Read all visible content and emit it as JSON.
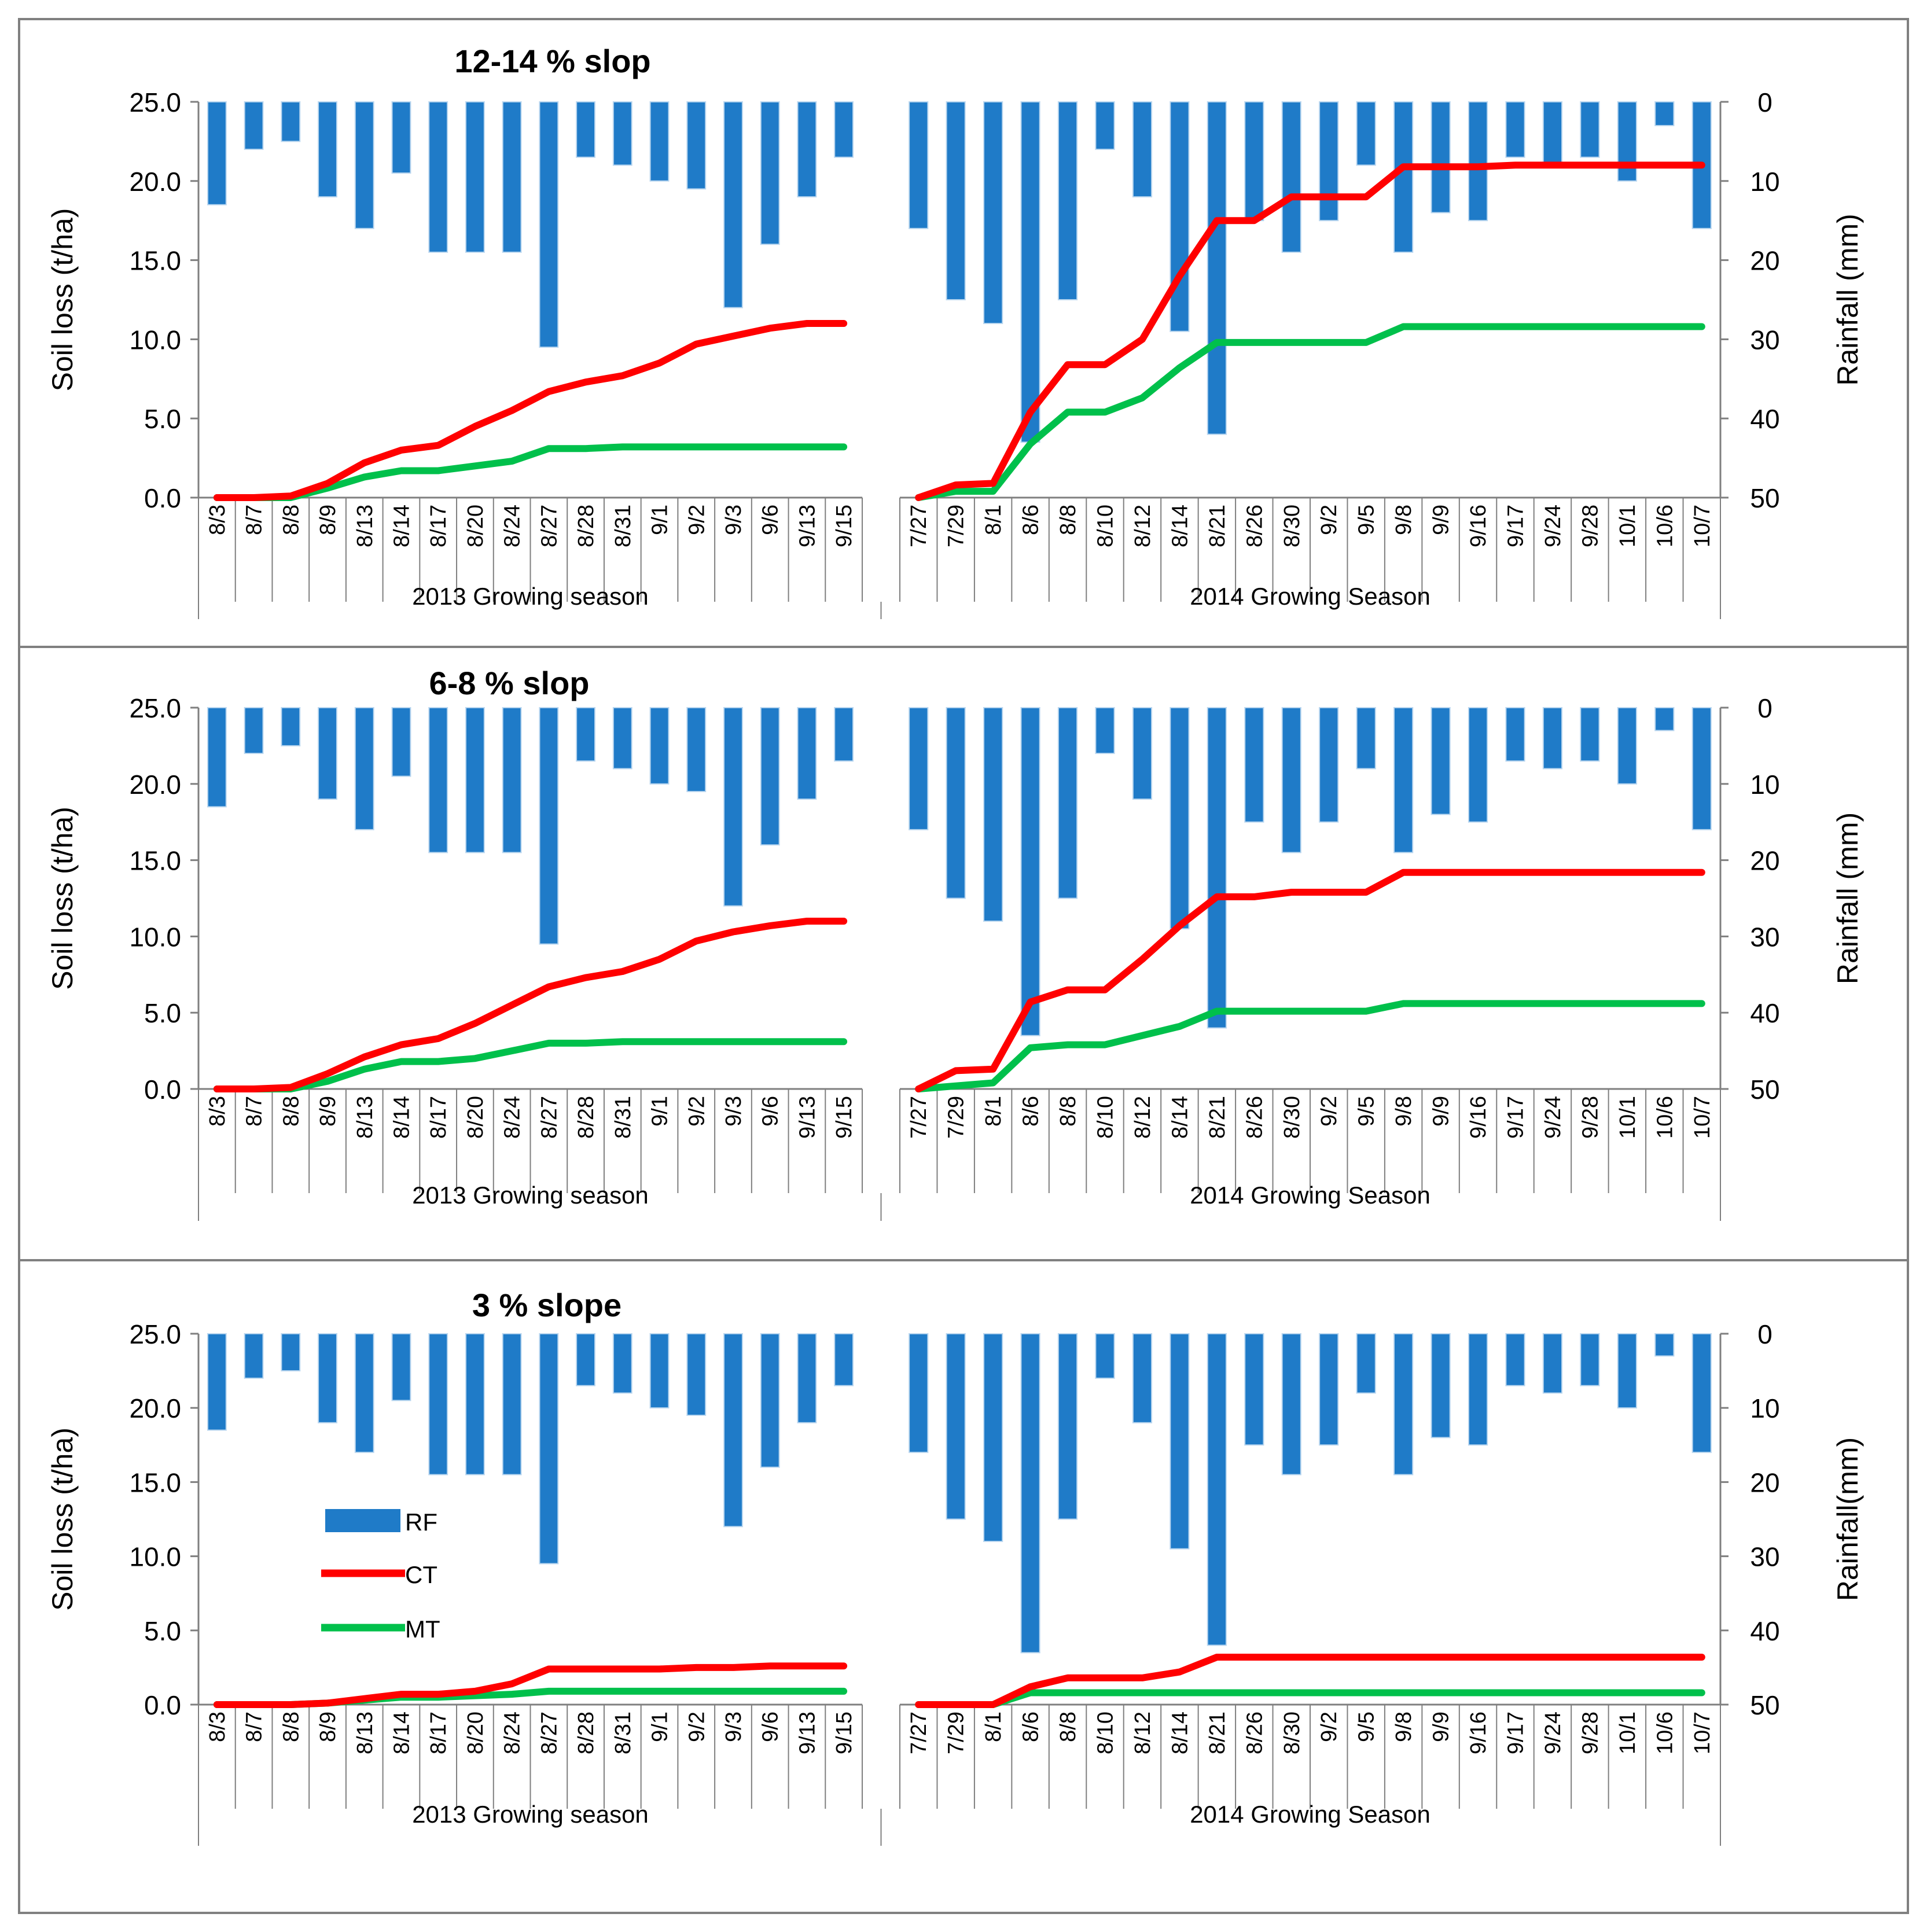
{
  "colors": {
    "rf": "#1f7bc8",
    "ct": "#ff0000",
    "mt": "#00c04b",
    "axis": "#7f7f7f",
    "text": "#000000",
    "frame": "#808080"
  },
  "legend": {
    "rf": "RF",
    "ct": "CT",
    "mt": "MT"
  },
  "chart_data": [
    {
      "type": "bar+line",
      "title": "12-14 % slop",
      "ylabel": "Soil loss (t/ha)",
      "y2label": "Rainfall (mm)",
      "ylim": [
        0,
        25
      ],
      "y2lim": [
        50,
        0
      ],
      "y_ticks": [
        "0.0",
        "5.0",
        "10.0",
        "15.0",
        "20.0",
        "25.0"
      ],
      "y2_ticks": [
        "50",
        "40",
        "30",
        "20",
        "10",
        "0"
      ],
      "season_2013_label": "2013 Growing season",
      "season_2014_label": "2014 Growing Season",
      "categories_2013": [
        "8/3",
        "8/7",
        "8/8",
        "8/9",
        "8/13",
        "8/14",
        "8/17",
        "8/20",
        "8/24",
        "8/27",
        "8/28",
        "8/31",
        "9/1",
        "9/2",
        "9/3",
        "9/6",
        "9/13",
        "9/15"
      ],
      "categories_2014": [
        "7/27",
        "7/29",
        "8/1",
        "8/6",
        "8/8",
        "8/10",
        "8/12",
        "8/14",
        "8/21",
        "8/26",
        "8/30",
        "9/2",
        "9/5",
        "9/8",
        "9/9",
        "9/16",
        "9/17",
        "9/24",
        "9/28",
        "10/1",
        "10/6",
        "10/7"
      ],
      "rainfall_2013": [
        13,
        6,
        5,
        12,
        16,
        9,
        19,
        19,
        19,
        31,
        7,
        8,
        10,
        11,
        26,
        18,
        12,
        7
      ],
      "rainfall_2014": [
        16,
        25,
        28,
        43,
        25,
        6,
        12,
        29,
        42,
        15,
        19,
        15,
        8,
        19,
        14,
        15,
        7,
        8,
        7,
        10,
        3,
        16
      ],
      "ct_2013": [
        0,
        0,
        0.1,
        0.9,
        2.2,
        3.0,
        3.3,
        4.5,
        5.5,
        6.7,
        7.3,
        7.7,
        8.5,
        9.7,
        10.2,
        10.7,
        11.0,
        11.0
      ],
      "mt_2013": [
        0,
        0,
        0,
        0.6,
        1.3,
        1.7,
        1.7,
        2.0,
        2.3,
        3.1,
        3.1,
        3.2,
        3.2,
        3.2,
        3.2,
        3.2,
        3.2,
        3.2
      ],
      "ct_2014": [
        0,
        0.8,
        0.9,
        5.4,
        8.4,
        8.4,
        10.0,
        14.0,
        17.5,
        17.5,
        19.0,
        19.0,
        19.0,
        20.9,
        20.9,
        20.9,
        21.0,
        21.0,
        21.0,
        21.0,
        21.0,
        21.0
      ],
      "mt_2014": [
        0,
        0.4,
        0.4,
        3.4,
        5.4,
        5.4,
        6.3,
        8.2,
        9.8,
        9.8,
        9.8,
        9.8,
        9.8,
        10.8,
        10.8,
        10.8,
        10.8,
        10.8,
        10.8,
        10.8,
        10.8,
        10.8
      ]
    },
    {
      "type": "bar+line",
      "title": "6-8 % slop",
      "ylabel": "Soil loss (t/ha)",
      "y2label": "Rainfall (mm)",
      "ylim": [
        0,
        25
      ],
      "y2lim": [
        50,
        0
      ],
      "y_ticks": [
        "0.0",
        "5.0",
        "10.0",
        "15.0",
        "20.0",
        "25.0"
      ],
      "y2_ticks": [
        "50",
        "40",
        "30",
        "20",
        "10",
        "0"
      ],
      "season_2013_label": "2013 Growing season",
      "season_2014_label": "2014 Growing Season",
      "categories_2013": [
        "8/3",
        "8/7",
        "8/8",
        "8/9",
        "8/13",
        "8/14",
        "8/17",
        "8/20",
        "8/24",
        "8/27",
        "8/28",
        "8/31",
        "9/1",
        "9/2",
        "9/3",
        "9/6",
        "9/13",
        "9/15"
      ],
      "categories_2014": [
        "7/27",
        "7/29",
        "8/1",
        "8/6",
        "8/8",
        "8/10",
        "8/12",
        "8/14",
        "8/21",
        "8/26",
        "8/30",
        "9/2",
        "9/5",
        "9/8",
        "9/9",
        "9/16",
        "9/17",
        "9/24",
        "9/28",
        "10/1",
        "10/6",
        "10/7"
      ],
      "rainfall_2013": [
        13,
        6,
        5,
        12,
        16,
        9,
        19,
        19,
        19,
        31,
        7,
        8,
        10,
        11,
        26,
        18,
        12,
        7
      ],
      "rainfall_2014": [
        16,
        25,
        28,
        43,
        25,
        6,
        12,
        29,
        42,
        15,
        19,
        15,
        8,
        19,
        14,
        15,
        7,
        8,
        7,
        10,
        3,
        16
      ],
      "ct_2013": [
        0,
        0,
        0.1,
        1.0,
        2.1,
        2.9,
        3.3,
        4.3,
        5.5,
        6.7,
        7.3,
        7.7,
        8.5,
        9.7,
        10.3,
        10.7,
        11.0,
        11.0
      ],
      "mt_2013": [
        0,
        0,
        0,
        0.5,
        1.3,
        1.8,
        1.8,
        2.0,
        2.5,
        3.0,
        3.0,
        3.1,
        3.1,
        3.1,
        3.1,
        3.1,
        3.1,
        3.1
      ],
      "ct_2014": [
        0,
        1.2,
        1.3,
        5.7,
        6.5,
        6.5,
        8.5,
        10.7,
        12.6,
        12.6,
        12.9,
        12.9,
        12.9,
        14.2,
        14.2,
        14.2,
        14.2,
        14.2,
        14.2,
        14.2,
        14.2,
        14.2
      ],
      "mt_2014": [
        0,
        0.2,
        0.4,
        2.7,
        2.9,
        2.9,
        3.5,
        4.1,
        5.1,
        5.1,
        5.1,
        5.1,
        5.1,
        5.6,
        5.6,
        5.6,
        5.6,
        5.6,
        5.6,
        5.6,
        5.6,
        5.6
      ]
    },
    {
      "type": "bar+line",
      "title": "3 % slope",
      "ylabel": "Soil loss (t/ha)",
      "y2label": "Rainfall(mm)",
      "ylim": [
        0,
        25
      ],
      "y2lim": [
        50,
        0
      ],
      "y_ticks": [
        "0.0",
        "5.0",
        "10.0",
        "15.0",
        "20.0",
        "25.0"
      ],
      "y2_ticks": [
        "50",
        "40",
        "30",
        "20",
        "10",
        "0"
      ],
      "season_2013_label": "2013 Growing season",
      "season_2014_label": "2014 Growing Season",
      "categories_2013": [
        "8/3",
        "8/7",
        "8/8",
        "8/9",
        "8/13",
        "8/14",
        "8/17",
        "8/20",
        "8/24",
        "8/27",
        "8/28",
        "8/31",
        "9/1",
        "9/2",
        "9/3",
        "9/6",
        "9/13",
        "9/15"
      ],
      "categories_2014": [
        "7/27",
        "7/29",
        "8/1",
        "8/6",
        "8/8",
        "8/10",
        "8/12",
        "8/14",
        "8/21",
        "8/26",
        "8/30",
        "9/2",
        "9/5",
        "9/8",
        "9/9",
        "9/16",
        "9/17",
        "9/24",
        "9/28",
        "10/1",
        "10/6",
        "10/7"
      ],
      "rainfall_2013": [
        13,
        6,
        5,
        12,
        16,
        9,
        19,
        19,
        19,
        31,
        7,
        8,
        10,
        11,
        26,
        18,
        12,
        7
      ],
      "rainfall_2014": [
        16,
        25,
        28,
        43,
        25,
        6,
        12,
        29,
        42,
        15,
        19,
        15,
        8,
        19,
        14,
        15,
        7,
        8,
        7,
        10,
        3,
        16
      ],
      "ct_2013": [
        0,
        0,
        0,
        0.1,
        0.4,
        0.7,
        0.7,
        0.9,
        1.4,
        2.4,
        2.4,
        2.4,
        2.4,
        2.5,
        2.5,
        2.6,
        2.6,
        2.6
      ],
      "mt_2013": [
        0,
        0,
        0,
        0.1,
        0.3,
        0.5,
        0.5,
        0.6,
        0.7,
        0.9,
        0.9,
        0.9,
        0.9,
        0.9,
        0.9,
        0.9,
        0.9,
        0.9
      ],
      "ct_2014": [
        0,
        0,
        0,
        1.2,
        1.8,
        1.8,
        1.8,
        2.2,
        3.2,
        3.2,
        3.2,
        3.2,
        3.2,
        3.2,
        3.2,
        3.2,
        3.2,
        3.2,
        3.2,
        3.2,
        3.2,
        3.2
      ],
      "mt_2014": [
        0,
        0,
        0,
        0.8,
        0.8,
        0.8,
        0.8,
        0.8,
        0.8,
        0.8,
        0.8,
        0.8,
        0.8,
        0.8,
        0.8,
        0.8,
        0.8,
        0.8,
        0.8,
        0.8,
        0.8,
        0.8
      ]
    }
  ]
}
